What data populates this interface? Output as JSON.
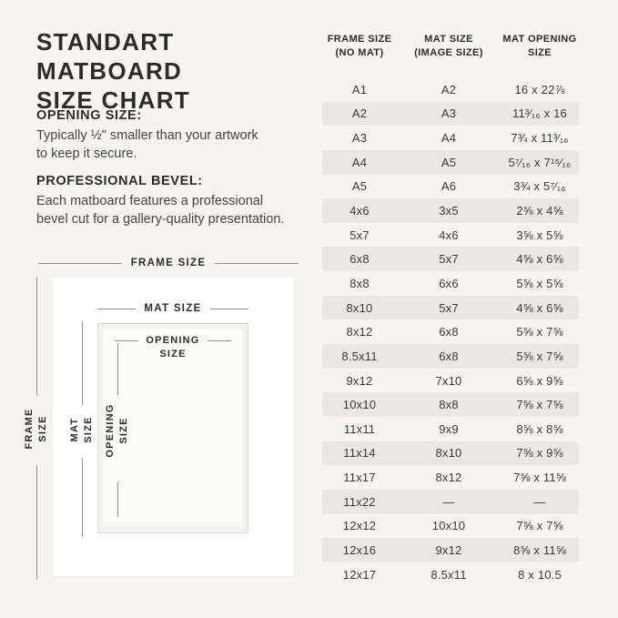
{
  "left": {
    "title": "STANDART MATBOARD\nSIZE CHART",
    "sections": [
      {
        "heading": "OPENING SIZE:",
        "body": "Typically ½\" smaller than your artwork\nto keep it secure."
      },
      {
        "heading": "PROFESSIONAL BEVEL:",
        "body": "Each matboard features a professional\nbevel cut for a gallery-quality presentation."
      }
    ]
  },
  "diagram": {
    "frame_label": "FRAME SIZE",
    "mat_label": "MAT SIZE",
    "opening_line1": "OPENING",
    "opening_line2": "SIZE",
    "v_frame_label": "FRAME SIZE",
    "v_mat_label": "MAT SIZE",
    "v_opening_label": "OPENING\nSIZE"
  },
  "table": {
    "columns": [
      "FRAME SIZE\n(NO MAT)",
      "MAT SIZE\n(IMAGE SIZE)",
      "MAT OPENING\nSIZE"
    ],
    "rows": [
      [
        "A1",
        "A2",
        "16 x 22⅞"
      ],
      [
        "A2",
        "A3",
        "11³⁄₁₆ x 16"
      ],
      [
        "A3",
        "A4",
        "7¾ x 11³⁄₁₆"
      ],
      [
        "A4",
        "A5",
        "5⁷⁄₁₆ x 7¹⁵⁄₁₆"
      ],
      [
        "A5",
        "A6",
        "3¾ x 5⁷⁄₁₆"
      ],
      [
        "4x6",
        "3x5",
        "2⅝ x 4⅝"
      ],
      [
        "5x7",
        "4x6",
        "3⅝ x 5⅝"
      ],
      [
        "6x8",
        "5x7",
        "4⅝ x 6⅝"
      ],
      [
        "8x8",
        "6x6",
        "5⅝ x 5⅝"
      ],
      [
        "8x10",
        "5x7",
        "4⅝ x 6⅝"
      ],
      [
        "8x12",
        "6x8",
        "5⅝ x 7⅝"
      ],
      [
        "8.5x11",
        "6x8",
        "5⅝ x 7⅝"
      ],
      [
        "9x12",
        "7x10",
        "6⅝ x 9⅝"
      ],
      [
        "10x10",
        "8x8",
        "7⅝ x 7⅝"
      ],
      [
        "11x11",
        "9x9",
        "8⅝ x 8⅝"
      ],
      [
        "11x14",
        "8x10",
        "7⅝ x 9⅝"
      ],
      [
        "11x17",
        "8x12",
        "7⅝ x 11⅝"
      ],
      [
        "11x22",
        "—",
        "—"
      ],
      [
        "12x12",
        "10x10",
        "7⅝ x 7⅝"
      ],
      [
        "12x16",
        "9x12",
        "8⅝ x 11⅝"
      ],
      [
        "12x17",
        "8.5x11",
        "8 x 10.5"
      ]
    ]
  },
  "colors": {
    "background": "#f6f5f2",
    "row_shade": "#e9e8e5",
    "text": "#2d2c2a",
    "measure_line": "#8f8e8b",
    "frame_white": "#ffffff"
  }
}
